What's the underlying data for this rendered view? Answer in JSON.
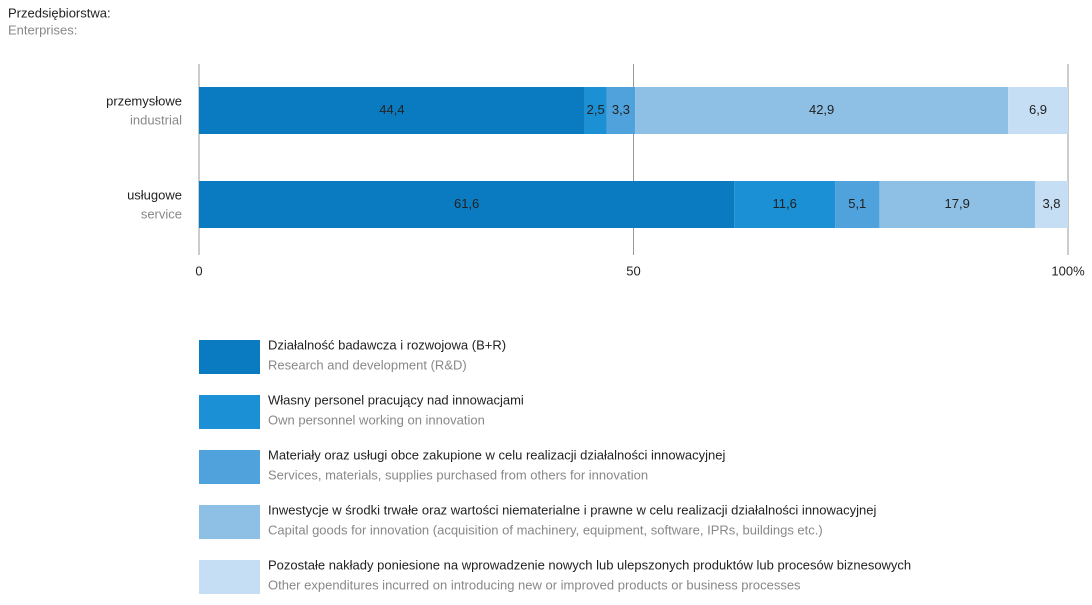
{
  "chart_data": {
    "type": "stacked_barh",
    "title": "Przedsiębiorstwa:",
    "subtitle": "Enterprises:",
    "categories": [
      "przemysłowe",
      "usługowe"
    ],
    "categories_en": [
      "industrial",
      "service"
    ],
    "xlim": [
      0,
      100
    ],
    "xticks": [
      0,
      50,
      {
        "value": 100,
        "label": "100%"
      }
    ],
    "grid": true,
    "series": [
      {
        "name": "Działalność badawcza i rozwojowa (B+R)",
        "name_en": "Research and development (R&D)",
        "color": "#0a7bc1",
        "values": [
          44.4,
          61.6
        ],
        "value_labels": [
          "44,4",
          "61,6"
        ]
      },
      {
        "name": "Własny personel pracujący nad innowacjami",
        "name_en": "Own personnel working on innovation",
        "color": "#1b90d4",
        "values": [
          2.5,
          11.6
        ],
        "value_labels": [
          "2,5",
          "11,6"
        ]
      },
      {
        "name": "Materiały oraz usługi obce zakupione w celu realizacji działalności innowacyjnej",
        "name_en": "Services, materials, supplies purchased from others for innovation",
        "color": "#4fa2dc",
        "values": [
          3.3,
          5.1
        ],
        "value_labels": [
          "3,3",
          "5,1"
        ]
      },
      {
        "name": "Inwestycje w środki trwałe oraz wartości niematerialne i prawne w celu realizacji działalności innowacyjnej",
        "name_en": "Capital goods for innovation (acquisition of machinery, equipment, software, IPRs, buildings etc.)",
        "color": "#8ebfe5",
        "values": [
          42.9,
          17.9
        ],
        "value_labels": [
          "42,9",
          "17,9"
        ]
      },
      {
        "name": "Pozostałe nakłady poniesione na wprowadzenie nowych lub ulepszonych produktów lub procesów biznesowych",
        "name_en": "Other expenditures incurred on introducing new or improved products or business processes",
        "color": "#c6def4",
        "values": [
          6.9,
          3.8
        ],
        "value_labels": [
          "6,9",
          "3,8"
        ]
      }
    ]
  }
}
